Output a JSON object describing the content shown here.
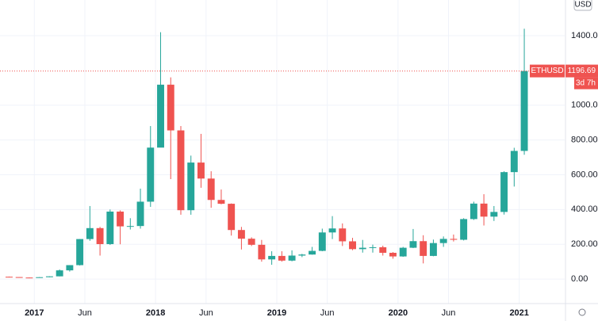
{
  "chart_data": {
    "type": "candlestick",
    "currency": "USD",
    "symbol": "ETHUSD",
    "last_price": 1196.69,
    "countdown": "3d 7h",
    "up_color": "#26a69a",
    "down_color": "#ef5350",
    "grid": true,
    "xlim": [
      -0.4,
      55.5
    ],
    "xticks": [
      {
        "value": 3,
        "label": "2017"
      },
      {
        "value": 8,
        "label": "Jun"
      },
      {
        "value": 15,
        "label": "2018"
      },
      {
        "value": 20,
        "label": "Jun"
      },
      {
        "value": 27,
        "label": "2019"
      },
      {
        "value": 32,
        "label": "Jun"
      },
      {
        "value": 39,
        "label": "2020"
      },
      {
        "value": 44,
        "label": "Jun"
      },
      {
        "value": 51,
        "label": "2021"
      }
    ],
    "ylim": [
      -141,
      1605
    ],
    "yticks": [
      {
        "value": 0,
        "label": "0.00"
      },
      {
        "value": 200,
        "label": "200.00"
      },
      {
        "value": 400,
        "label": "400.00"
      },
      {
        "value": 600,
        "label": "600.00"
      },
      {
        "value": 800,
        "label": "800.00"
      },
      {
        "value": 1000,
        "label": "1000.00"
      },
      {
        "value": 1400,
        "label": "1400.00"
      }
    ],
    "open": [
      13.2,
      11.4,
      8.6,
      8.0,
      10.7,
      15.6,
      50,
      80,
      230,
      293,
      201,
      388,
      303,
      305,
      445,
      756,
      1118,
      855,
      396,
      670,
      578,
      455,
      433,
      282,
      232,
      197,
      113,
      133,
      106,
      135,
      141,
      162,
      268,
      291,
      217,
      172,
      180,
      183,
      151,
      130,
      180,
      218,
      133,
      207,
      231,
      226,
      345,
      434,
      359,
      386,
      615,
      737
    ],
    "high": [
      14.2,
      11.5,
      9.0,
      11.5,
      15.9,
      55,
      80,
      230,
      420,
      300,
      400,
      395,
      350,
      520,
      880,
      1420,
      1160,
      880,
      710,
      835,
      620,
      515,
      435,
      300,
      240,
      225,
      160,
      160,
      165,
      145,
      185,
      290,
      362,
      320,
      237,
      225,
      198,
      192,
      155,
      185,
      288,
      252,
      227,
      245,
      256,
      350,
      445,
      488,
      420,
      620,
      755,
      1440
    ],
    "low": [
      10.5,
      8.3,
      6.4,
      8.0,
      10.4,
      15.5,
      43,
      78,
      220,
      135,
      196,
      200,
      285,
      290,
      415,
      758,
      575,
      370,
      370,
      525,
      410,
      430,
      250,
      170,
      190,
      100,
      82,
      100,
      102,
      126,
      140,
      160,
      230,
      190,
      166,
      152,
      152,
      135,
      117,
      128,
      178,
      90,
      131,
      185,
      216,
      222,
      340,
      308,
      334,
      371,
      532,
      715
    ],
    "close": [
      11.4,
      8.6,
      8.0,
      10.7,
      15.6,
      50,
      80,
      230,
      293,
      201,
      388,
      303,
      305,
      445,
      756,
      1118,
      855,
      396,
      670,
      578,
      455,
      433,
      282,
      232,
      197,
      113,
      133,
      106,
      135,
      141,
      162,
      268,
      291,
      217,
      172,
      180,
      183,
      151,
      130,
      180,
      218,
      133,
      207,
      231,
      226,
      345,
      434,
      359,
      386,
      615,
      737,
      1196.69
    ]
  }
}
